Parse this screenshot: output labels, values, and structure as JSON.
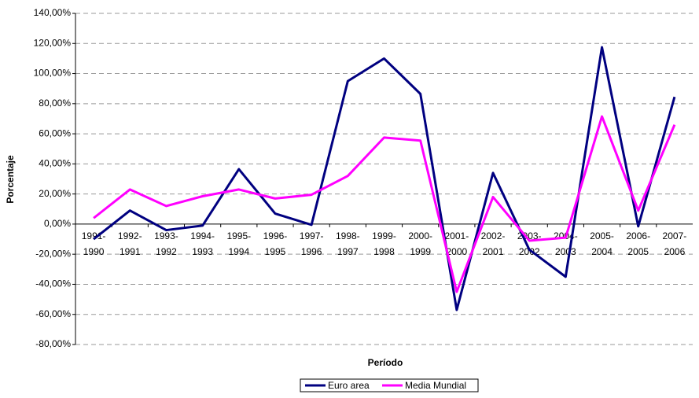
{
  "chart_data": {
    "type": "line",
    "x_label": "Período",
    "y_label": "Porcentaje",
    "categories": [
      "1991-\n1990",
      "1992-\n1991",
      "1993-\n1992",
      "1994-\n1993",
      "1995-\n1994",
      "1996-\n1995",
      "1997-\n1996",
      "1998-\n1997",
      "1999-\n1998",
      "2000-\n1999",
      "2001-\n2000",
      "2002-\n2001",
      "2003-\n2002",
      "2004-\n2003",
      "2005-\n2004",
      "2006-\n2005",
      "2007-\n2006"
    ],
    "series": [
      {
        "name": "Euro area",
        "color": "#000080",
        "values": [
          -10,
          9,
          -4,
          -1,
          36.5,
          7,
          -0.5,
          95,
          110,
          86.5,
          -57,
          34,
          -17,
          -35,
          117.5,
          -1.5,
          84.5
        ]
      },
      {
        "name": "Media Mundial",
        "color": "#ff00ff",
        "values": [
          4,
          23,
          12,
          18.5,
          23,
          17,
          19.5,
          32,
          57.5,
          55.5,
          -45,
          18,
          -11,
          -9,
          71.5,
          9,
          66
        ]
      }
    ],
    "ylim": [
      -80,
      140
    ],
    "yticks": [
      {
        "value": -80,
        "label": "-80,00%"
      },
      {
        "value": -60,
        "label": "-60,00%"
      },
      {
        "value": -40,
        "label": "-40,00%"
      },
      {
        "value": -20,
        "label": "-20,00%"
      },
      {
        "value": 0,
        "label": "0,00%"
      },
      {
        "value": 20,
        "label": "20,00%"
      },
      {
        "value": 40,
        "label": "40,00%"
      },
      {
        "value": 60,
        "label": "60,00%"
      },
      {
        "value": 80,
        "label": "80,00%"
      },
      {
        "value": 100,
        "label": "100,00%"
      },
      {
        "value": 120,
        "label": "120,00%"
      },
      {
        "value": 140,
        "label": "140,00%"
      }
    ],
    "grid": true,
    "legend": "bottom"
  }
}
